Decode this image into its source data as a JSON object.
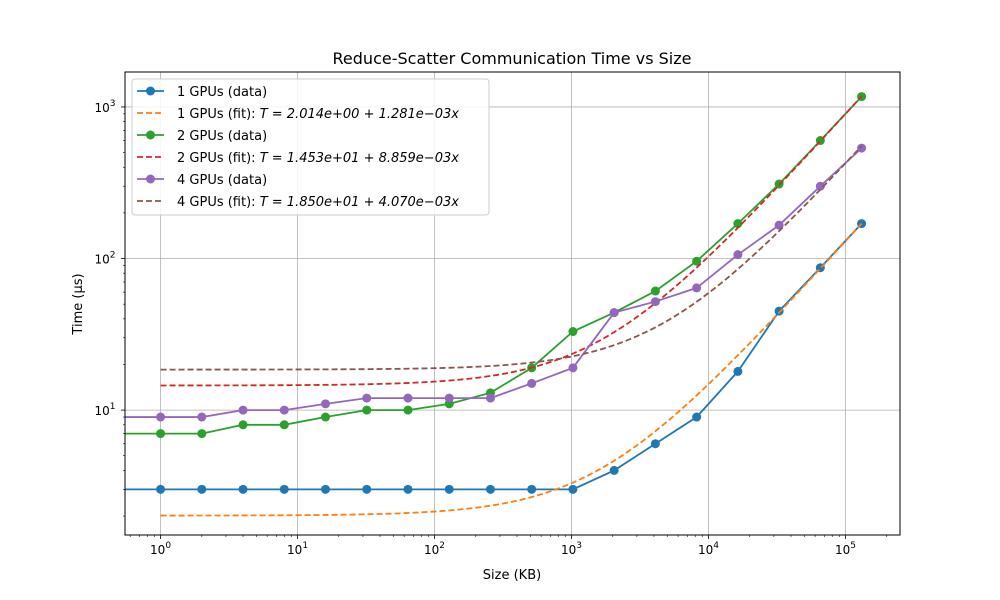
{
  "chart_data": {
    "type": "line",
    "title": "Reduce-Scatter Communication Time vs Size",
    "xlabel": "Size (KB)",
    "ylabel": "Time (µs)",
    "xscale": "log",
    "yscale": "log",
    "xlim": [
      0.55,
      250000
    ],
    "ylim": [
      1.5,
      1700
    ],
    "grid": true,
    "legend_position": "top-left",
    "x_ticks": [
      {
        "value": 1,
        "base": "10",
        "exp": "0"
      },
      {
        "value": 10,
        "base": "10",
        "exp": "1"
      },
      {
        "value": 100,
        "base": "10",
        "exp": "2"
      },
      {
        "value": 1000,
        "base": "10",
        "exp": "3"
      },
      {
        "value": 10000,
        "base": "10",
        "exp": "4"
      },
      {
        "value": 100000,
        "base": "10",
        "exp": "5"
      }
    ],
    "y_ticks": [
      {
        "value": 10,
        "base": "10",
        "exp": "1"
      },
      {
        "value": 100,
        "base": "10",
        "exp": "2"
      },
      {
        "value": 1000,
        "base": "10",
        "exp": "3"
      }
    ],
    "x": [
      1,
      2,
      4,
      8,
      16,
      32,
      64,
      128,
      256,
      512,
      1024,
      2048,
      4096,
      8192,
      16384,
      32768,
      65536,
      131072
    ],
    "series": [
      {
        "name": "1 GPUs (data)",
        "kind": "data",
        "color": "#1f77b4",
        "values": [
          3,
          3,
          3,
          3,
          3,
          3,
          3,
          3,
          3,
          3,
          3,
          4,
          6,
          9,
          18,
          45,
          87,
          170
        ]
      },
      {
        "name": "1 GPUs (fit): ",
        "formula": "T = 2.014e+00 + 1.281e−03x",
        "kind": "fit",
        "color": "#ff7f0e",
        "a": 2.014,
        "b": 0.001281
      },
      {
        "name": "2 GPUs (data)",
        "kind": "data",
        "color": "#2ca02c",
        "values": [
          7,
          7,
          8,
          8,
          9,
          10,
          10,
          11,
          13,
          19,
          33,
          44,
          61,
          96,
          170,
          310,
          600,
          1170
        ]
      },
      {
        "name": "2 GPUs (fit): ",
        "formula": "T = 1.453e+01 + 8.859e−03x",
        "kind": "fit",
        "color": "#d62728",
        "a": 14.53,
        "b": 0.008859
      },
      {
        "name": "4 GPUs (data)",
        "kind": "data",
        "color": "#9467bd",
        "values": [
          9,
          9,
          10,
          10,
          11,
          12,
          12,
          12,
          12,
          15,
          19,
          44,
          52,
          64,
          106,
          166,
          300,
          535
        ]
      },
      {
        "name": "4 GPUs (fit): ",
        "formula": "T = 1.850e+01 + 4.070e−03x",
        "kind": "fit",
        "color": "#8c564b",
        "a": 18.5,
        "b": 0.00407
      }
    ]
  }
}
